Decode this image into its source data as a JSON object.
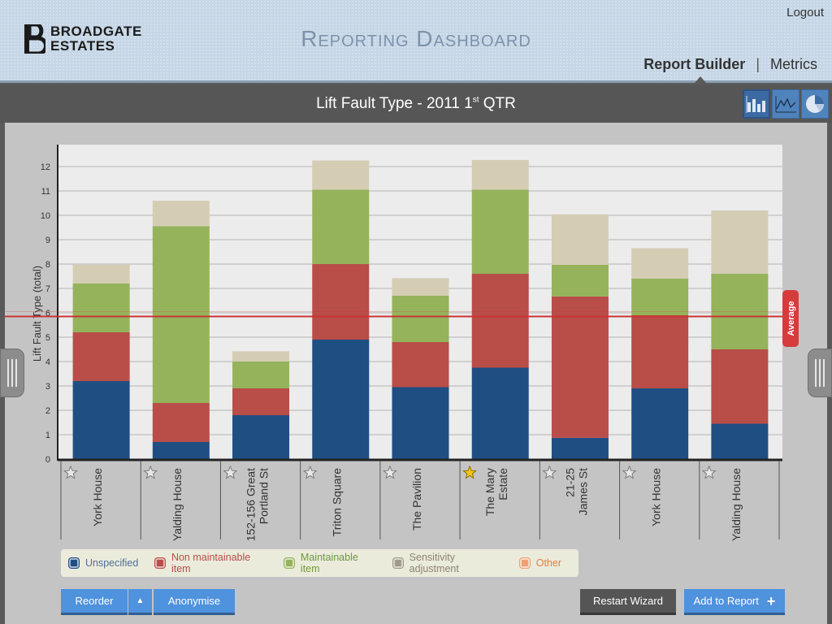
{
  "header": {
    "logo_line1": "BROADGATE",
    "logo_line2": "ESTATES",
    "app_title": "Reporting Dashboard",
    "logout_label": "Logout",
    "nav_active": "Report Builder",
    "nav_separator": "|",
    "nav_metrics": "Metrics"
  },
  "titlebar": {
    "title_main": "Lift Fault Type - 2011 1",
    "title_sup": "st",
    "title_end": " QTR"
  },
  "view_buttons": [
    "bar-chart-icon",
    "line-chart-icon",
    "pie-chart-icon"
  ],
  "chart_data": {
    "type": "bar",
    "stacked": true,
    "title": "Lift Fault Type - 2011 1st QTR",
    "ylabel": "Lift Fault Type (total)",
    "xlabel": "",
    "ylim": [
      0,
      12.9
    ],
    "yticks": [
      0,
      1,
      2,
      3,
      4,
      5,
      6,
      7,
      8,
      9,
      10,
      11,
      12
    ],
    "grid": true,
    "categories": [
      "York House",
      "Yalding House",
      "152-156 Great\nPortland St",
      "Triton Square",
      "The Pavilion",
      "The Mary\nEstate",
      "21-25\nJames St",
      "York House",
      "Yalding House"
    ],
    "starred": [
      false,
      false,
      false,
      false,
      false,
      true,
      false,
      false,
      false
    ],
    "series": [
      {
        "name": "Unspecified",
        "color": "#1f4e82",
        "values": [
          3.2,
          0.7,
          1.8,
          4.9,
          2.95,
          3.75,
          0.87,
          2.9,
          1.45
        ]
      },
      {
        "name": "Non maintainable item",
        "color": "#b94d48",
        "values": [
          2.0,
          1.6,
          1.1,
          3.1,
          1.85,
          3.85,
          5.8,
          3.0,
          3.05
        ]
      },
      {
        "name": "Maintainable item",
        "color": "#95b35b",
        "values": [
          2.0,
          7.25,
          1.1,
          3.05,
          1.9,
          3.45,
          1.3,
          1.5,
          3.1
        ]
      },
      {
        "name": "Sensitivity adjustment",
        "color": "#d4cdb4",
        "values": [
          0.77,
          1.05,
          0.42,
          1.2,
          0.72,
          1.22,
          2.07,
          1.25,
          2.6
        ]
      },
      {
        "name": "Other",
        "color": "#f0a070",
        "values": [
          0,
          0,
          0,
          0,
          0,
          0,
          0,
          0,
          0
        ]
      }
    ],
    "average": 5.85,
    "average_label": "Average"
  },
  "legend": [
    {
      "label": "Unspecified",
      "color": "#1f4e82",
      "text_color": "#4f6f94"
    },
    {
      "label": "Non maintainable item",
      "color": "#b94d48",
      "text_color": "#b94d48"
    },
    {
      "label": "Maintainable item",
      "color": "#95b35b",
      "text_color": "#6e9a3a"
    },
    {
      "label": "Sensitivity adjustment",
      "color": "#a09a88",
      "text_color": "#8b8470"
    },
    {
      "label": "Other",
      "color": "#f0a070",
      "text_color": "#e08040"
    }
  ],
  "buttons": {
    "reorder": "Reorder",
    "anonymise": "Anonymise",
    "restart": "Restart Wizard",
    "add_to_report": "Add to Report",
    "add_plus": "+",
    "caret": "▲"
  }
}
